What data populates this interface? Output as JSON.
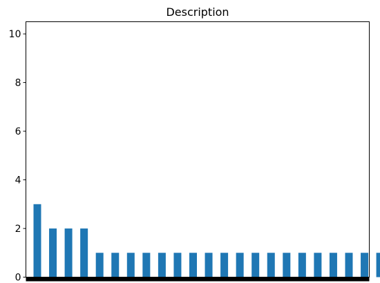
{
  "chart_data": {
    "type": "bar",
    "title": "Description",
    "xlabel": "",
    "ylabel": "",
    "ylim": [
      0,
      10.5
    ],
    "yticks": [
      0,
      2,
      4,
      6,
      8,
      10
    ],
    "values": [
      3,
      2,
      2,
      2,
      1,
      1,
      1,
      1,
      1,
      1,
      1,
      1,
      1,
      1,
      1,
      1,
      1,
      1,
      1,
      1,
      1,
      1,
      1
    ],
    "bar_color": "#1f77b4",
    "grid": false,
    "legend": "none"
  }
}
